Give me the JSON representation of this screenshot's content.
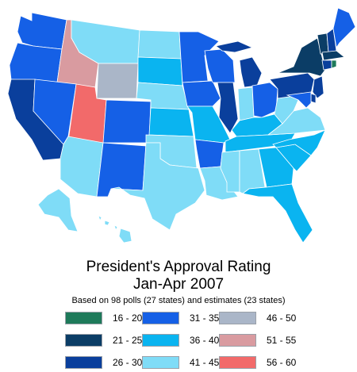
{
  "title_line1": "President's Approval Rating",
  "title_line2": "Jan-Apr 2007",
  "subtitle": "Based on 98 polls (27 states) and estimates (23 states)",
  "legend": [
    {
      "label": "16 - 20",
      "color": "#1e7a5a"
    },
    {
      "label": "21 - 25",
      "color": "#0b3d66"
    },
    {
      "label": "26 - 30",
      "color": "#0a3f9c"
    },
    {
      "label": "31 - 35",
      "color": "#1560e6"
    },
    {
      "label": "36 - 40",
      "color": "#0ab4f0"
    },
    {
      "label": "41 - 45",
      "color": "#7fdcf7"
    },
    {
      "label": "46 - 50",
      "color": "#aab6c8"
    },
    {
      "label": "51 - 55",
      "color": "#d99ba0"
    },
    {
      "label": "56 - 60",
      "color": "#f26a6a"
    }
  ],
  "states": [
    {
      "name": "WA",
      "bin": 3
    },
    {
      "name": "OR",
      "bin": 3
    },
    {
      "name": "CA",
      "bin": 2
    },
    {
      "name": "ID",
      "bin": 7
    },
    {
      "name": "NV",
      "bin": 3
    },
    {
      "name": "UT",
      "bin": 8
    },
    {
      "name": "AZ",
      "bin": 5
    },
    {
      "name": "MT",
      "bin": 5
    },
    {
      "name": "WY",
      "bin": 6
    },
    {
      "name": "CO",
      "bin": 3
    },
    {
      "name": "NM",
      "bin": 3
    },
    {
      "name": "ND",
      "bin": 5
    },
    {
      "name": "SD",
      "bin": 4
    },
    {
      "name": "NE",
      "bin": 5
    },
    {
      "name": "KS",
      "bin": 4
    },
    {
      "name": "OK",
      "bin": 5
    },
    {
      "name": "TX",
      "bin": 5
    },
    {
      "name": "MN",
      "bin": 3
    },
    {
      "name": "IA",
      "bin": 3
    },
    {
      "name": "MO",
      "bin": 4
    },
    {
      "name": "AR",
      "bin": 3
    },
    {
      "name": "LA",
      "bin": 5
    },
    {
      "name": "WI",
      "bin": 3
    },
    {
      "name": "IL",
      "bin": 2
    },
    {
      "name": "MI",
      "bin": 2
    },
    {
      "name": "IN",
      "bin": 5
    },
    {
      "name": "OH",
      "bin": 3
    },
    {
      "name": "KY",
      "bin": 4
    },
    {
      "name": "TN",
      "bin": 4
    },
    {
      "name": "MS",
      "bin": 5
    },
    {
      "name": "AL",
      "bin": 5
    },
    {
      "name": "GA",
      "bin": 4
    },
    {
      "name": "FL",
      "bin": 4
    },
    {
      "name": "SC",
      "bin": 4
    },
    {
      "name": "NC",
      "bin": 4
    },
    {
      "name": "VA",
      "bin": 5
    },
    {
      "name": "WV",
      "bin": 5
    },
    {
      "name": "PA",
      "bin": 2
    },
    {
      "name": "NY",
      "bin": 1
    },
    {
      "name": "VT",
      "bin": 1
    },
    {
      "name": "NH",
      "bin": 2
    },
    {
      "name": "ME",
      "bin": 3
    },
    {
      "name": "MA",
      "bin": 1
    },
    {
      "name": "RI",
      "bin": 0
    },
    {
      "name": "CT",
      "bin": 2
    },
    {
      "name": "NJ",
      "bin": 2
    },
    {
      "name": "DE",
      "bin": 2
    },
    {
      "name": "MD",
      "bin": 3
    },
    {
      "name": "AK",
      "bin": 5
    },
    {
      "name": "HI",
      "bin": 5
    }
  ]
}
